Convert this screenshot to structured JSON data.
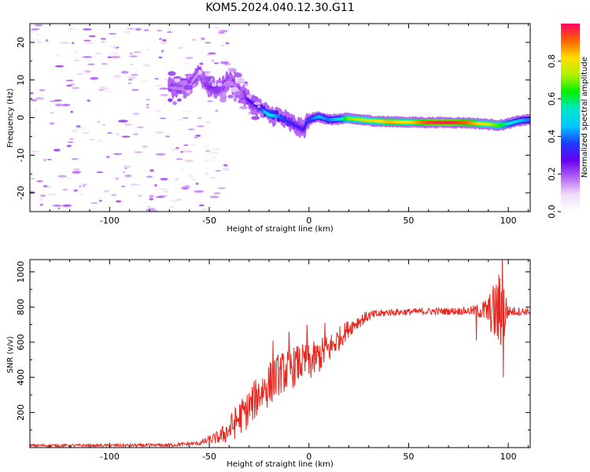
{
  "figure": {
    "title": "KOM5.2024.040.12.30.G11"
  },
  "chart_data": [
    {
      "type": "heatmap",
      "xlabel": "Height of straight line (km)",
      "ylabel": "Frequency (Hz)",
      "xlim": [
        -140,
        111
      ],
      "ylim": [
        -25,
        25
      ],
      "xticks": [
        -100,
        -50,
        0,
        50,
        100
      ],
      "yticks": [
        -20,
        -10,
        0,
        10,
        20
      ],
      "colorbar": {
        "label": "Normalized spectral amplitude",
        "range": [
          0,
          1
        ],
        "ticks": [
          0.0,
          0.2,
          0.4,
          0.6,
          0.8
        ],
        "colors": [
          "#ffffff",
          "#f1ddf9",
          "#b464f5",
          "#6400f0",
          "#1e3cff",
          "#00c8ff",
          "#00e6c8",
          "#00f000",
          "#b4f000",
          "#ffdc00",
          "#ff6400",
          "#ff0064"
        ]
      },
      "ridge": {
        "description": "Doppler frequency ridge versus height",
        "points": [
          {
            "x": -70,
            "y": 8,
            "amp": 0.18
          },
          {
            "x": -62,
            "y": 7.5,
            "amp": 0.16
          },
          {
            "x": -55,
            "y": 12,
            "amp": 0.15
          },
          {
            "x": -50,
            "y": 8,
            "amp": 0.24
          },
          {
            "x": -45,
            "y": 7.6,
            "amp": 0.22
          },
          {
            "x": -40,
            "y": 10,
            "amp": 0.18
          },
          {
            "x": -35,
            "y": 7,
            "amp": 0.15
          },
          {
            "x": -30,
            "y": 4.5,
            "amp": 0.28
          },
          {
            "x": -25,
            "y": 2.6,
            "amp": 0.32
          },
          {
            "x": -20,
            "y": 0.7,
            "amp": 0.55
          },
          {
            "x": -15,
            "y": 0.3,
            "amp": 0.4
          },
          {
            "x": -10,
            "y": -1.2,
            "amp": 0.34
          },
          {
            "x": -3,
            "y": -3.2,
            "amp": 0.3
          },
          {
            "x": 0,
            "y": -0.5,
            "amp": 0.36
          },
          {
            "x": 5,
            "y": 0.3,
            "amp": 0.45
          },
          {
            "x": 10,
            "y": -0.6,
            "amp": 0.4
          },
          {
            "x": 15,
            "y": -0.4,
            "amp": 0.48
          },
          {
            "x": 20,
            "y": -0.2,
            "amp": 0.7
          },
          {
            "x": 30,
            "y": -0.8,
            "amp": 0.75
          },
          {
            "x": 40,
            "y": -1.1,
            "amp": 0.85
          },
          {
            "x": 50,
            "y": -1.2,
            "amp": 0.8
          },
          {
            "x": 60,
            "y": -1.3,
            "amp": 0.95
          },
          {
            "x": 70,
            "y": -1.3,
            "amp": 0.97
          },
          {
            "x": 80,
            "y": -1.4,
            "amp": 0.9
          },
          {
            "x": 90,
            "y": -1.8,
            "amp": 0.75
          },
          {
            "x": 96,
            "y": -2.0,
            "amp": 0.65
          },
          {
            "x": 100,
            "y": -1.6,
            "amp": 0.55
          },
          {
            "x": 106,
            "y": -0.8,
            "amp": 0.45
          },
          {
            "x": 111,
            "y": -0.5,
            "amp": 0.4
          }
        ]
      },
      "noise_speckles": {
        "x_range": [
          -140,
          -40
        ],
        "y_range": [
          -25,
          25
        ],
        "amp_range": [
          0.05,
          0.2
        ]
      }
    },
    {
      "type": "line",
      "xlabel": "Height of straight line (km)",
      "ylabel": "SNR (v/v)",
      "xlim": [
        -140,
        111
      ],
      "ylim": [
        0,
        1070
      ],
      "xticks": [
        -100,
        -50,
        0,
        50,
        100
      ],
      "yticks": [
        200,
        400,
        600,
        800,
        1000
      ],
      "series": [
        {
          "color": "#e8261e",
          "envelope": [
            {
              "x": -140,
              "mean": 12,
              "noise": 8
            },
            {
              "x": -100,
              "mean": 12,
              "noise": 8
            },
            {
              "x": -70,
              "mean": 14,
              "noise": 10
            },
            {
              "x": -55,
              "mean": 25,
              "noise": 12
            },
            {
              "x": -45,
              "mean": 60,
              "noise": 40
            },
            {
              "x": -40,
              "mean": 100,
              "noise": 80
            },
            {
              "x": -35,
              "mean": 170,
              "noise": 100
            },
            {
              "x": -30,
              "mean": 220,
              "noise": 110
            },
            {
              "x": -25,
              "mean": 310,
              "noise": 120
            },
            {
              "x": -20,
              "mean": 360,
              "noise": 130
            },
            {
              "x": -15,
              "mean": 420,
              "noise": 120
            },
            {
              "x": -10,
              "mean": 440,
              "noise": 120
            },
            {
              "x": -5,
              "mean": 480,
              "noise": 110
            },
            {
              "x": 0,
              "mean": 480,
              "noise": 110
            },
            {
              "x": 5,
              "mean": 520,
              "noise": 100
            },
            {
              "x": 10,
              "mean": 560,
              "noise": 90
            },
            {
              "x": 15,
              "mean": 620,
              "noise": 70
            },
            {
              "x": 20,
              "mean": 680,
              "noise": 50
            },
            {
              "x": 25,
              "mean": 720,
              "noise": 40
            },
            {
              "x": 30,
              "mean": 750,
              "noise": 30
            },
            {
              "x": 40,
              "mean": 770,
              "noise": 20
            },
            {
              "x": 60,
              "mean": 775,
              "noise": 20
            },
            {
              "x": 80,
              "mean": 778,
              "noise": 22
            },
            {
              "x": 85,
              "mean": 780,
              "noise": 40
            },
            {
              "x": 90,
              "mean": 775,
              "noise": 90
            },
            {
              "x": 94,
              "mean": 770,
              "noise": 200
            },
            {
              "x": 97,
              "mean": 770,
              "noise": 280
            },
            {
              "x": 100,
              "mean": 775,
              "noise": 30
            },
            {
              "x": 111,
              "mean": 775,
              "noise": 20
            }
          ],
          "peaks": [
            {
              "x": -30,
              "y": 310
            },
            {
              "x": -18,
              "y": 610
            },
            {
              "x": -10,
              "y": 660
            },
            {
              "x": -1,
              "y": 700
            },
            {
              "x": 8,
              "y": 710
            },
            {
              "x": 97,
              "y": 1070
            },
            {
              "x": 97.5,
              "y": 400
            },
            {
              "x": 84,
              "y": 610
            }
          ]
        }
      ]
    }
  ]
}
